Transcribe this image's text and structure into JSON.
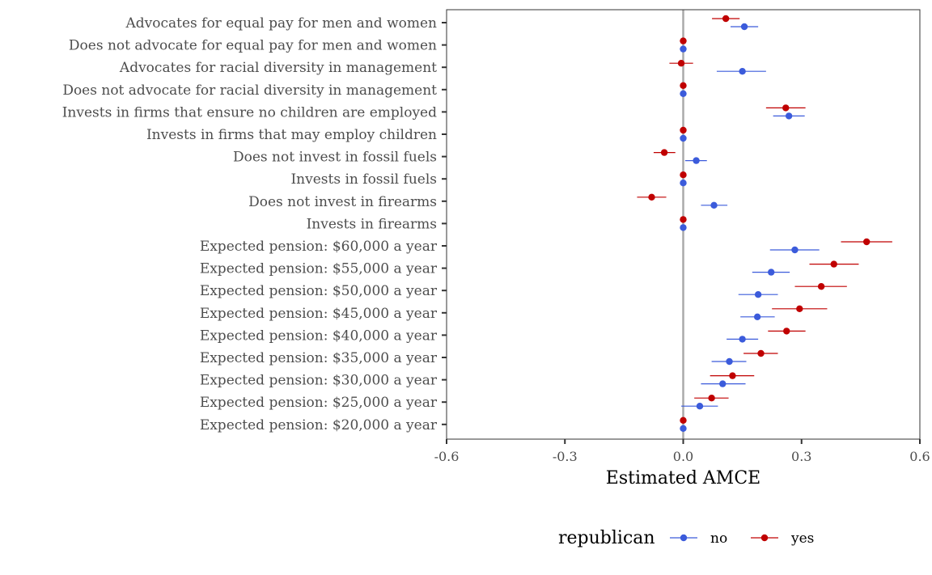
{
  "chart_data": {
    "type": "scatter",
    "subtype": "coefficient-plot-with-error-bars",
    "xlabel": "Estimated AMCE",
    "xlim": [
      -0.6,
      0.6
    ],
    "xticks": [
      -0.6,
      -0.3,
      0.0,
      0.3,
      0.6
    ],
    "xtick_labels": [
      "-0.6",
      "-0.3",
      "0.0",
      "0.3",
      "0.6"
    ],
    "reference_line": 0,
    "grid": false,
    "legend": {
      "title": "republican",
      "placement": "bottom",
      "entries": [
        {
          "key": "no",
          "label": "no",
          "color": "#3b5bdb"
        },
        {
          "key": "yes",
          "label": "yes",
          "color": "#c00000"
        }
      ]
    },
    "categories": [
      "Advocates for equal pay for men and women",
      "Does not advocate for equal pay for men and women",
      "Advocates for racial diversity in management",
      "Does not advocate for racial diversity in management",
      "Invests in firms that ensure no children are employed",
      "Invests in firms that may employ children",
      "Does not invest in fossil fuels",
      "Invests in fossil fuels",
      "Does not invest in firearms",
      "Invests in firearms",
      "Expected pension: $60,000 a year",
      "Expected pension: $55,000 a year",
      "Expected pension: $50,000 a year",
      "Expected pension: $45,000 a year",
      "Expected pension: $40,000 a year",
      "Expected pension: $35,000 a year",
      "Expected pension: $30,000 a year",
      "Expected pension: $25,000 a year",
      "Expected pension: $20,000 a year"
    ],
    "series": [
      {
        "name": "no",
        "color": "#3b5bdb",
        "estimates": [
          0.155,
          0.0,
          0.15,
          0.0,
          0.268,
          0.0,
          0.033,
          0.0,
          0.078,
          0.0,
          0.283,
          0.223,
          0.19,
          0.188,
          0.15,
          0.117,
          0.1,
          0.042,
          0.0
        ],
        "lower": [
          0.12,
          0.0,
          0.085,
          0.0,
          0.228,
          0.0,
          0.005,
          0.0,
          0.045,
          0.0,
          0.22,
          0.175,
          0.14,
          0.145,
          0.11,
          0.072,
          0.045,
          -0.005,
          0.0
        ],
        "upper": [
          0.19,
          0.0,
          0.21,
          0.0,
          0.308,
          0.0,
          0.06,
          0.0,
          0.112,
          0.0,
          0.345,
          0.27,
          0.24,
          0.232,
          0.19,
          0.16,
          0.158,
          0.088,
          0.0
        ]
      },
      {
        "name": "yes",
        "color": "#c00000",
        "estimates": [
          0.108,
          0.0,
          -0.005,
          0.0,
          0.26,
          0.0,
          -0.048,
          0.0,
          -0.08,
          0.0,
          0.465,
          0.382,
          0.35,
          0.295,
          0.262,
          0.197,
          0.125,
          0.072,
          0.0
        ],
        "lower": [
          0.073,
          0.0,
          -0.035,
          0.0,
          0.21,
          0.0,
          -0.075,
          0.0,
          -0.117,
          0.0,
          0.4,
          0.32,
          0.283,
          0.225,
          0.215,
          0.153,
          0.068,
          0.028,
          0.0
        ],
        "upper": [
          0.143,
          0.0,
          0.025,
          0.0,
          0.31,
          0.0,
          -0.02,
          0.0,
          -0.043,
          0.0,
          0.53,
          0.445,
          0.415,
          0.365,
          0.31,
          0.24,
          0.18,
          0.115,
          0.0
        ]
      }
    ]
  }
}
